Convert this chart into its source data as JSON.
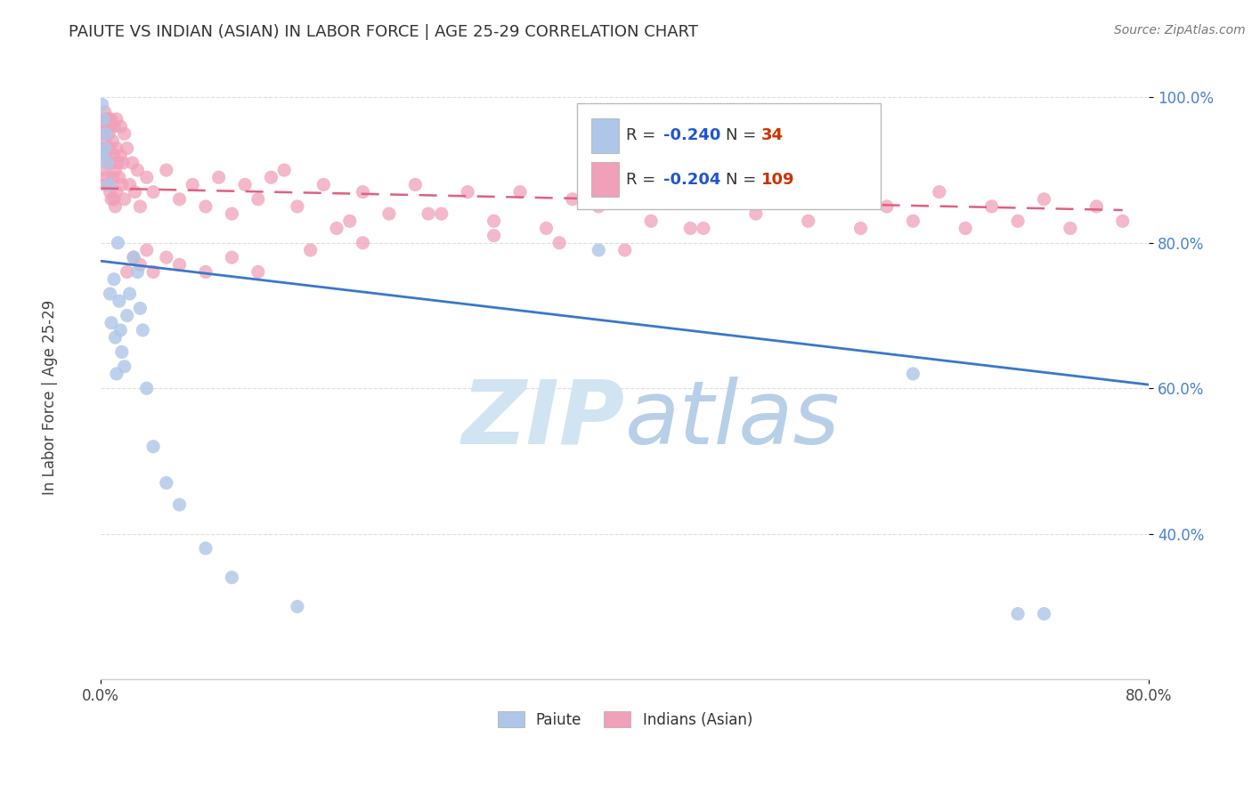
{
  "title": "PAIUTE VS INDIAN (ASIAN) IN LABOR FORCE | AGE 25-29 CORRELATION CHART",
  "source": "Source: ZipAtlas.com",
  "ylabel": "In Labor Force | Age 25-29",
  "xlim": [
    0.0,
    0.8
  ],
  "ylim": [
    0.2,
    1.05
  ],
  "x_ticks": [
    0.0,
    0.8
  ],
  "x_tick_labels": [
    "0.0%",
    "80.0%"
  ],
  "y_ticks": [
    0.4,
    0.6,
    0.8,
    1.0
  ],
  "y_tick_labels": [
    "40.0%",
    "60.0%",
    "80.0%",
    "100.0%"
  ],
  "legend_labels": [
    "Paiute",
    "Indians (Asian)"
  ],
  "legend_r1": "-0.240",
  "legend_n1": "34",
  "legend_r2": "-0.204",
  "legend_n2": "109",
  "paiute_color": "#aec6e8",
  "indian_color": "#f0a0b8",
  "paiute_line_color": "#3a78c9",
  "indian_line_color": "#e06080",
  "watermark_top": "ZIP",
  "watermark_bot": "atlas",
  "watermark_color": "#cde0f0",
  "background_color": "#ffffff",
  "grid_color": "#dddddd",
  "r_color": "#2255cc",
  "n_color": "#cc3300",
  "paiute_x": [
    0.001,
    0.001,
    0.002,
    0.003,
    0.004,
    0.005,
    0.006,
    0.007,
    0.008,
    0.01,
    0.011,
    0.012,
    0.013,
    0.014,
    0.015,
    0.016,
    0.018,
    0.02,
    0.022,
    0.025,
    0.028,
    0.03,
    0.032,
    0.035,
    0.04,
    0.05,
    0.06,
    0.08,
    0.1,
    0.15,
    0.38,
    0.62,
    0.7,
    0.72
  ],
  "paiute_y": [
    0.99,
    0.92,
    0.97,
    0.93,
    0.95,
    0.91,
    0.88,
    0.73,
    0.69,
    0.75,
    0.67,
    0.62,
    0.8,
    0.72,
    0.68,
    0.65,
    0.63,
    0.7,
    0.73,
    0.78,
    0.76,
    0.71,
    0.68,
    0.6,
    0.52,
    0.47,
    0.44,
    0.38,
    0.34,
    0.3,
    0.79,
    0.62,
    0.29,
    0.29
  ],
  "indian_x": [
    0.001,
    0.001,
    0.002,
    0.002,
    0.003,
    0.003,
    0.004,
    0.004,
    0.005,
    0.005,
    0.006,
    0.006,
    0.007,
    0.007,
    0.008,
    0.008,
    0.009,
    0.009,
    0.01,
    0.01,
    0.011,
    0.011,
    0.012,
    0.012,
    0.013,
    0.014,
    0.015,
    0.016,
    0.017,
    0.018,
    0.02,
    0.022,
    0.024,
    0.026,
    0.028,
    0.03,
    0.035,
    0.04,
    0.05,
    0.06,
    0.07,
    0.08,
    0.09,
    0.1,
    0.11,
    0.12,
    0.13,
    0.15,
    0.17,
    0.19,
    0.2,
    0.22,
    0.24,
    0.26,
    0.28,
    0.3,
    0.32,
    0.34,
    0.36,
    0.38,
    0.4,
    0.42,
    0.44,
    0.46,
    0.48,
    0.5,
    0.52,
    0.54,
    0.56,
    0.58,
    0.6,
    0.62,
    0.64,
    0.66,
    0.68,
    0.7,
    0.72,
    0.74,
    0.76,
    0.78,
    0.003,
    0.004,
    0.005,
    0.006,
    0.007,
    0.008,
    0.01,
    0.012,
    0.015,
    0.018,
    0.02,
    0.025,
    0.03,
    0.035,
    0.04,
    0.05,
    0.06,
    0.08,
    0.1,
    0.12,
    0.14,
    0.16,
    0.18,
    0.2,
    0.25,
    0.3,
    0.35,
    0.4,
    0.45
  ],
  "indian_y": [
    0.93,
    0.96,
    0.9,
    0.95,
    0.88,
    0.94,
    0.92,
    0.89,
    0.97,
    0.91,
    0.95,
    0.88,
    0.93,
    0.87,
    0.91,
    0.86,
    0.94,
    0.89,
    0.92,
    0.86,
    0.9,
    0.85,
    0.93,
    0.87,
    0.91,
    0.89,
    0.92,
    0.88,
    0.91,
    0.86,
    0.93,
    0.88,
    0.91,
    0.87,
    0.9,
    0.85,
    0.89,
    0.87,
    0.9,
    0.86,
    0.88,
    0.85,
    0.89,
    0.84,
    0.88,
    0.86,
    0.89,
    0.85,
    0.88,
    0.83,
    0.87,
    0.84,
    0.88,
    0.84,
    0.87,
    0.83,
    0.87,
    0.82,
    0.86,
    0.85,
    0.88,
    0.83,
    0.87,
    0.82,
    0.86,
    0.84,
    0.87,
    0.83,
    0.86,
    0.82,
    0.85,
    0.83,
    0.87,
    0.82,
    0.85,
    0.83,
    0.86,
    0.82,
    0.85,
    0.83,
    0.98,
    0.97,
    0.96,
    0.97,
    0.96,
    0.97,
    0.96,
    0.97,
    0.96,
    0.95,
    0.76,
    0.78,
    0.77,
    0.79,
    0.76,
    0.78,
    0.77,
    0.76,
    0.78,
    0.76,
    0.9,
    0.79,
    0.82,
    0.8,
    0.84,
    0.81,
    0.8,
    0.79,
    0.82
  ],
  "paiute_trendline_x": [
    0.0,
    0.8
  ],
  "paiute_trendline_y": [
    0.775,
    0.605
  ],
  "indian_trendline_x": [
    0.0,
    0.78
  ],
  "indian_trendline_y": [
    0.875,
    0.845
  ]
}
